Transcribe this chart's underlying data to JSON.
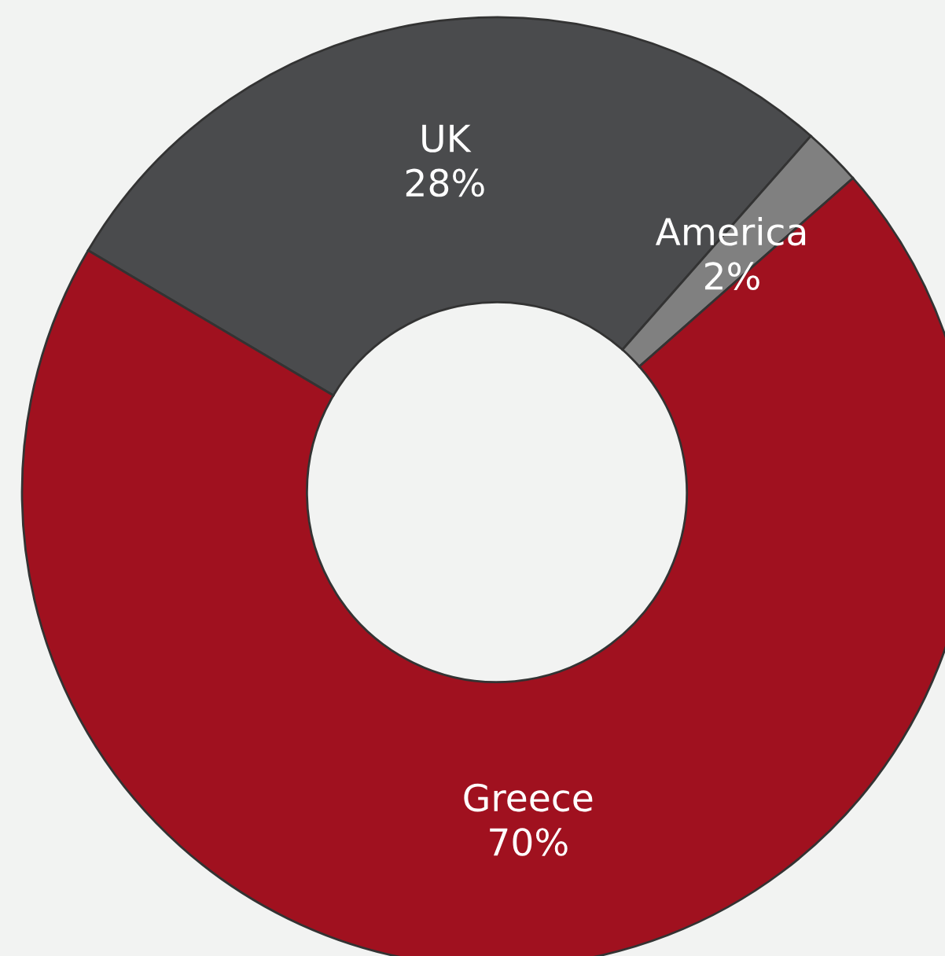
{
  "chart_data": {
    "type": "donut",
    "categories": [
      "UK",
      "America",
      "Greece"
    ],
    "values": [
      28,
      2,
      70
    ],
    "value_labels": [
      "28%",
      "2%",
      "70%"
    ],
    "colors": [
      "#4a4b4d",
      "#808080",
      "#a0111f"
    ],
    "legend": false
  }
}
